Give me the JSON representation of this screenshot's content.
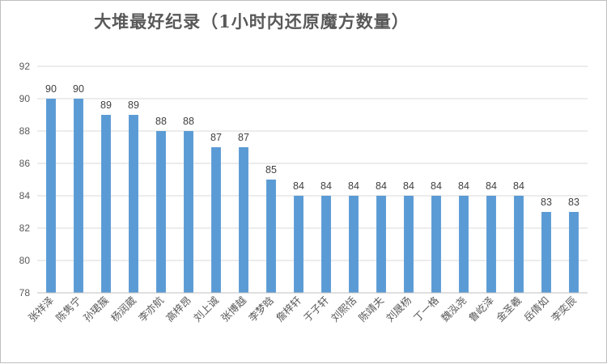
{
  "chart_data": {
    "type": "bar",
    "title": "大堆最好纪录（1小时内还原魔方数量）",
    "categories": [
      "张祥泽",
      "陈隽宁",
      "孙珺簇",
      "杨润葳",
      "李亦航",
      "高梓昂",
      "刘上诚",
      "张博越",
      "李梦晗",
      "詹梓轩",
      "于子轩",
      "刘熙恬",
      "陈靖夫",
      "刘晟杨",
      "丁一格",
      "魏泓尧",
      "鲁屹泽",
      "金圣羲",
      "岳倩如",
      "李奕辰"
    ],
    "values": [
      90,
      90,
      89,
      89,
      88,
      88,
      87,
      87,
      85,
      84,
      84,
      84,
      84,
      84,
      84,
      84,
      84,
      84,
      83,
      83
    ],
    "ylim": [
      78,
      92
    ],
    "yticks": [
      78,
      80,
      82,
      84,
      86,
      88,
      90,
      92
    ],
    "grid": true,
    "legend": "none",
    "bar_color": "#5b9bd5",
    "xlabel": "",
    "ylabel": ""
  }
}
